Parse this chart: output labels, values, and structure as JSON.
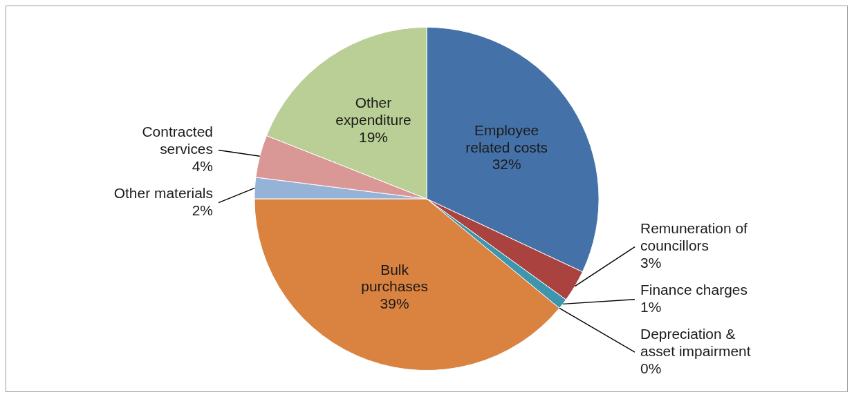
{
  "chart_data": {
    "type": "pie",
    "categories": [
      "Employee related costs",
      "Remuneration of councillors",
      "Finance charges",
      "Depreciation & asset impairment",
      "Bulk purchases",
      "Other materials",
      "Contracted services",
      "Other expenditure"
    ],
    "values": [
      32,
      3,
      1,
      0,
      39,
      2,
      4,
      19
    ],
    "value_labels": [
      "32%",
      "3%",
      "1%",
      "0%",
      "39%",
      "2%",
      "4%",
      "19%"
    ],
    "colors": [
      "#4472a8",
      "#aa4340",
      "#3d96ae",
      "#7a3b2e",
      "#da823f",
      "#95b3d7",
      "#d99795",
      "#b9cf95"
    ],
    "legend": false
  }
}
